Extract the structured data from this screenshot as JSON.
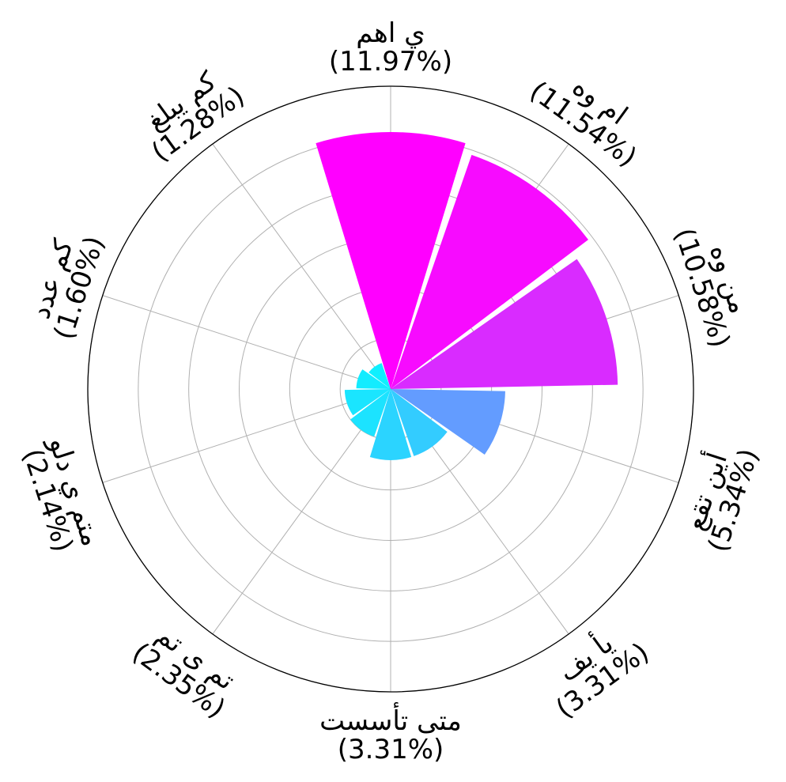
{
  "chart_data": {
    "type": "polar-bar",
    "title": "",
    "start_angle_deg": 90,
    "direction": "clockwise",
    "grid": true,
    "categories": [
      {
        "name": "ي اهم",
        "pct_label": "(11.97%)",
        "value": 11.97,
        "color": "#ff00ff"
      },
      {
        "name": "ام وه",
        "pct_label": "(11.54%)",
        "value": 11.54,
        "color": "#f70bff"
      },
      {
        "name": "من وه",
        "pct_label": "(10.58%)",
        "value": 10.58,
        "color": "#d92bff"
      },
      {
        "name": "أين تقع",
        "pct_label": "(5.34%)",
        "value": 5.34,
        "color": "#639cff"
      },
      {
        "name": "يأ يف",
        "pct_label": "(3.31%)",
        "value": 3.31,
        "color": "#33ccff"
      },
      {
        "name": "متى تأسست",
        "pct_label": "(3.31%)",
        "value": 3.31,
        "color": "#2bd4ff"
      },
      {
        "name": "تم ى تم",
        "pct_label": "(2.35%)",
        "value": 2.35,
        "color": "#1ce3ff"
      },
      {
        "name": "متم ي دلو",
        "pct_label": "(2.14%)",
        "value": 2.14,
        "color": "#1ae5ff"
      },
      {
        "name": "كم عدد",
        "pct_label": "(1.60%)",
        "value": 1.6,
        "color": "#13ecff"
      },
      {
        "name": "كم يبلغ",
        "pct_label": "(1.28%)",
        "value": 1.28,
        "color": "#0ff0ff"
      }
    ]
  }
}
